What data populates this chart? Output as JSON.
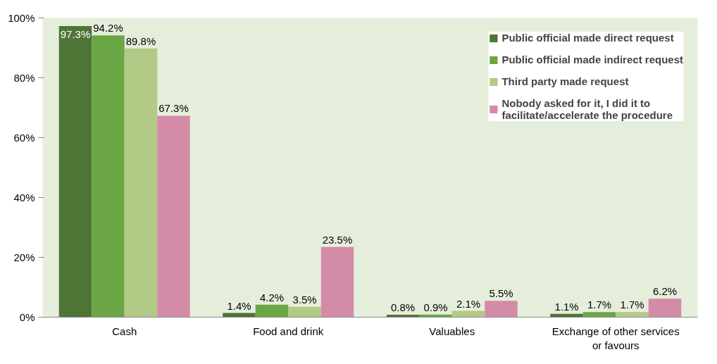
{
  "chart_data": {
    "type": "bar",
    "categories": [
      "Cash",
      "Food and drink",
      "Valuables",
      "Exchange of other services or favours"
    ],
    "series": [
      {
        "name": "Public official made direct request",
        "color": "#4e7436",
        "values": [
          97.3,
          1.4,
          0.8,
          1.1
        ],
        "value_labels": [
          "97.3%",
          "1.4%",
          "0.8%",
          "1.1%"
        ]
      },
      {
        "name": "Public official made indirect request",
        "color": "#6ba644",
        "values": [
          94.2,
          4.2,
          0.9,
          1.7
        ],
        "value_labels": [
          "94.2%",
          "4.2%",
          "0.9%",
          "1.7%"
        ]
      },
      {
        "name": "Third party made request",
        "color": "#b3c986",
        "values": [
          89.8,
          3.5,
          2.1,
          1.7
        ],
        "value_labels": [
          "89.8%",
          "3.5%",
          "2.1%",
          "1.7%"
        ]
      },
      {
        "name": "Nobody asked for it, I did it to facilitate/accelerate the procedure",
        "color": "#d38ba8",
        "values": [
          67.3,
          23.5,
          5.5,
          6.2
        ],
        "value_labels": [
          "67.3%",
          "23.5%",
          "5.5%",
          "6.2%"
        ]
      }
    ],
    "ylim": [
      0,
      100
    ],
    "yticks": [
      {
        "value": 0,
        "label": "0%"
      },
      {
        "value": 20,
        "label": "20%"
      },
      {
        "value": 40,
        "label": "40%"
      },
      {
        "value": 60,
        "label": "60%"
      },
      {
        "value": 80,
        "label": "80%"
      },
      {
        "value": 100,
        "label": "100%"
      }
    ],
    "grid": false,
    "legend": "top right"
  }
}
